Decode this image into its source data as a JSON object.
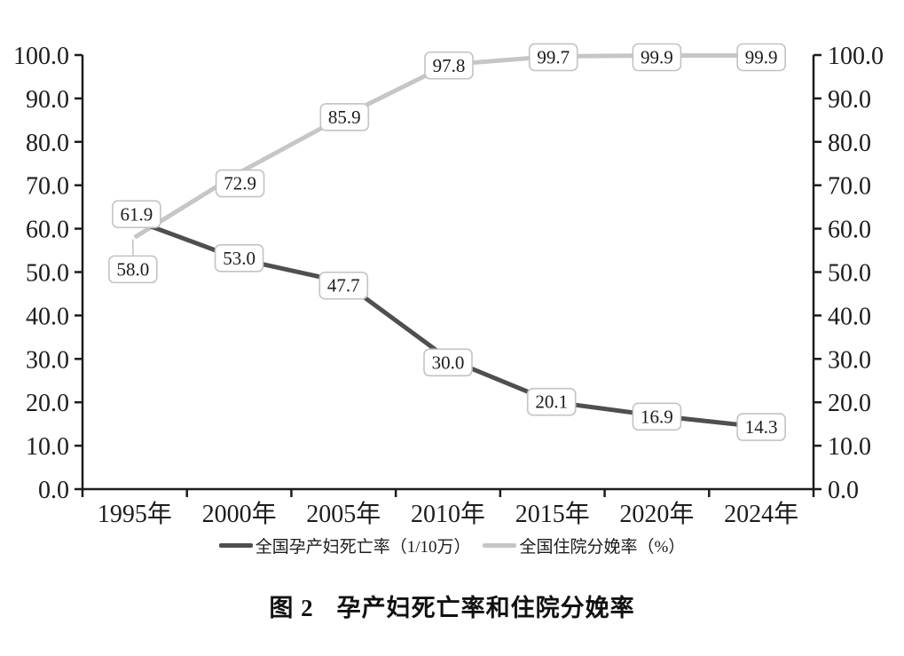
{
  "figure": {
    "caption_label": "图 2",
    "caption_text": "孕产妇死亡率和住院分娩率"
  },
  "chart_data": {
    "type": "line",
    "categories": [
      "1995年",
      "2000年",
      "2005年",
      "2010年",
      "2015年",
      "2020年",
      "2024年"
    ],
    "series": [
      {
        "name": "全国孕产妇死亡率（1/10万）",
        "values": [
          61.9,
          53.0,
          47.7,
          30.0,
          20.1,
          16.9,
          14.3
        ],
        "color": "#4f4f4f"
      },
      {
        "name": "全国住院分娩率（%）",
        "values": [
          58.0,
          72.9,
          85.9,
          97.8,
          99.7,
          99.9,
          99.9
        ],
        "color": "#c6c6c6"
      }
    ],
    "data_labels": {
      "series0": [
        "61.9",
        "53.0",
        "47.7",
        "30.0",
        "20.1",
        "16.9",
        "14.3"
      ],
      "series1": [
        "58.0",
        "72.9",
        "85.9",
        "97.8",
        "99.7",
        "99.9",
        "99.9"
      ]
    },
    "y_axis": {
      "min": 0,
      "max": 100,
      "step": 10,
      "tick_labels": [
        "0.0",
        "10.0",
        "20.0",
        "30.0",
        "40.0",
        "50.0",
        "60.0",
        "70.0",
        "80.0",
        "90.0",
        "100.0"
      ],
      "sides": [
        "left",
        "right"
      ]
    },
    "grid": false,
    "legend_position": "bottom",
    "colors": {
      "axis": "#1c1c1c",
      "tick_text": "#1c1c1c",
      "label_box_fill": "#ffffff",
      "label_box_border": "#c3c3c3",
      "label_text": "#1c1c1c",
      "leader_line": "#c6c6c6"
    }
  }
}
